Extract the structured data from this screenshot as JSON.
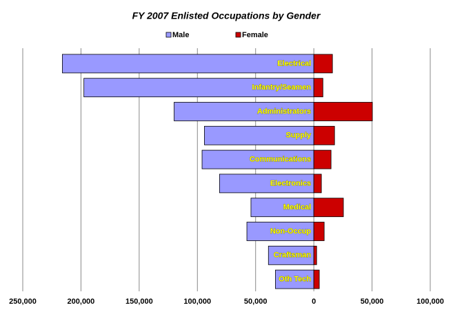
{
  "chart_data": {
    "type": "bar",
    "orientation": "horizontal",
    "title": "FY 2007 Enlisted Occupations by Gender",
    "categories": [
      "Electrical",
      "Infantry/Seamen",
      "Administrators",
      "Supply",
      "Communications",
      "Electronics",
      "Medical",
      "Non-Occup",
      "Craftsman",
      "Oth Tech"
    ],
    "series": [
      {
        "name": "Male",
        "color": "#9999ff",
        "values": [
          -216000,
          -197500,
          -120000,
          -94000,
          -96000,
          -81000,
          -54000,
          -57500,
          -39000,
          -33000
        ]
      },
      {
        "name": "Female",
        "color": "#cc0000",
        "values": [
          16000,
          7800,
          50300,
          17800,
          14800,
          6500,
          25400,
          8900,
          2400,
          4700
        ]
      }
    ],
    "xlim": [
      -250000,
      100000
    ],
    "xticks": [
      {
        "value": -250000,
        "label": "250,000"
      },
      {
        "value": -200000,
        "label": "200,000"
      },
      {
        "value": -150000,
        "label": "150,000"
      },
      {
        "value": -100000,
        "label": "100,000"
      },
      {
        "value": -50000,
        "label": "50,000"
      },
      0,
      {
        "value": 50000,
        "label": "50,000"
      },
      {
        "value": 100000,
        "label": "100,000"
      }
    ],
    "grid": true,
    "legend": "top"
  }
}
